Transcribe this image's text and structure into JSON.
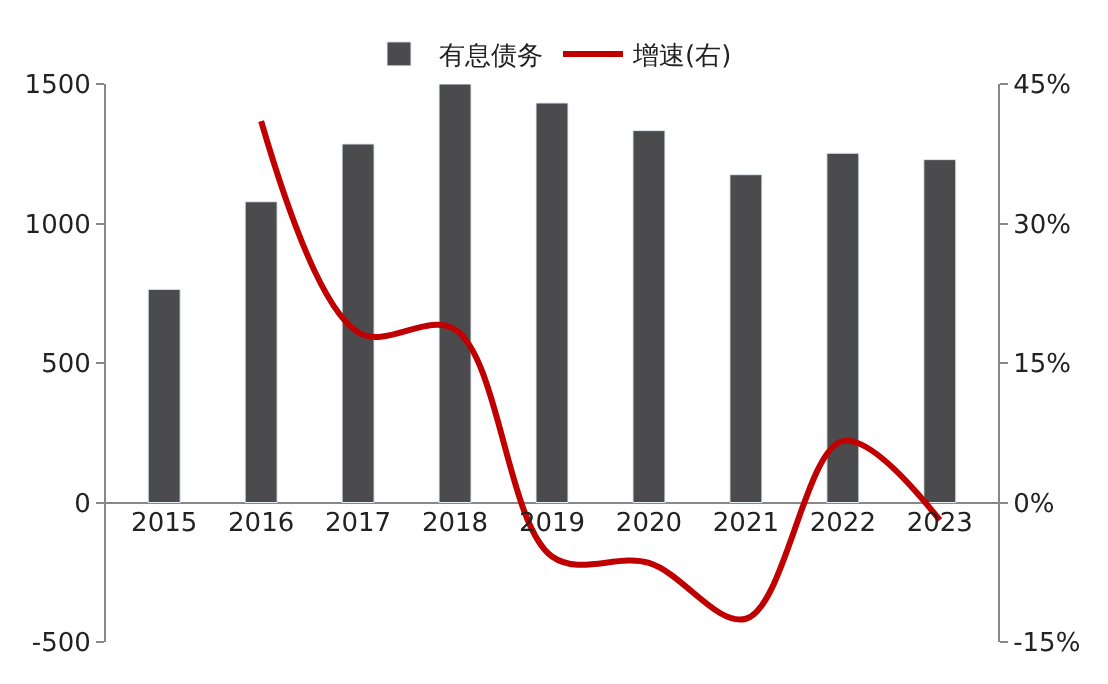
{
  "chart_data": {
    "type": "bar",
    "categories": [
      "2015",
      "2016",
      "2017",
      "2018",
      "2019",
      "2020",
      "2021",
      "2022",
      "2023"
    ],
    "series": [
      {
        "name": "有息债务",
        "color": "#4b4b4d",
        "values": [
          764,
          1078,
          1285,
          1500,
          1432,
          1333,
          1175,
          1252,
          1229
        ]
      },
      {
        "name": "增速(右)",
        "type": "line",
        "axis": "y2",
        "color": "#c00000",
        "values": [
          null,
          41,
          18.3,
          18.6,
          -5.8,
          -6.5,
          -12.5,
          6.6,
          -1.9
        ]
      }
    ],
    "ylim": [
      -500,
      1500
    ],
    "yticks": [
      -500,
      0,
      500,
      1000,
      1500
    ],
    "y2lim": [
      -15,
      45
    ],
    "y2ticks": [
      {
        "value": -15,
        "label": "-15%"
      },
      {
        "value": 0,
        "label": "0%"
      },
      {
        "value": 15,
        "label": "15%"
      },
      {
        "value": 30,
        "label": "30%"
      },
      {
        "value": 45,
        "label": "45%"
      }
    ],
    "legend": "top"
  }
}
